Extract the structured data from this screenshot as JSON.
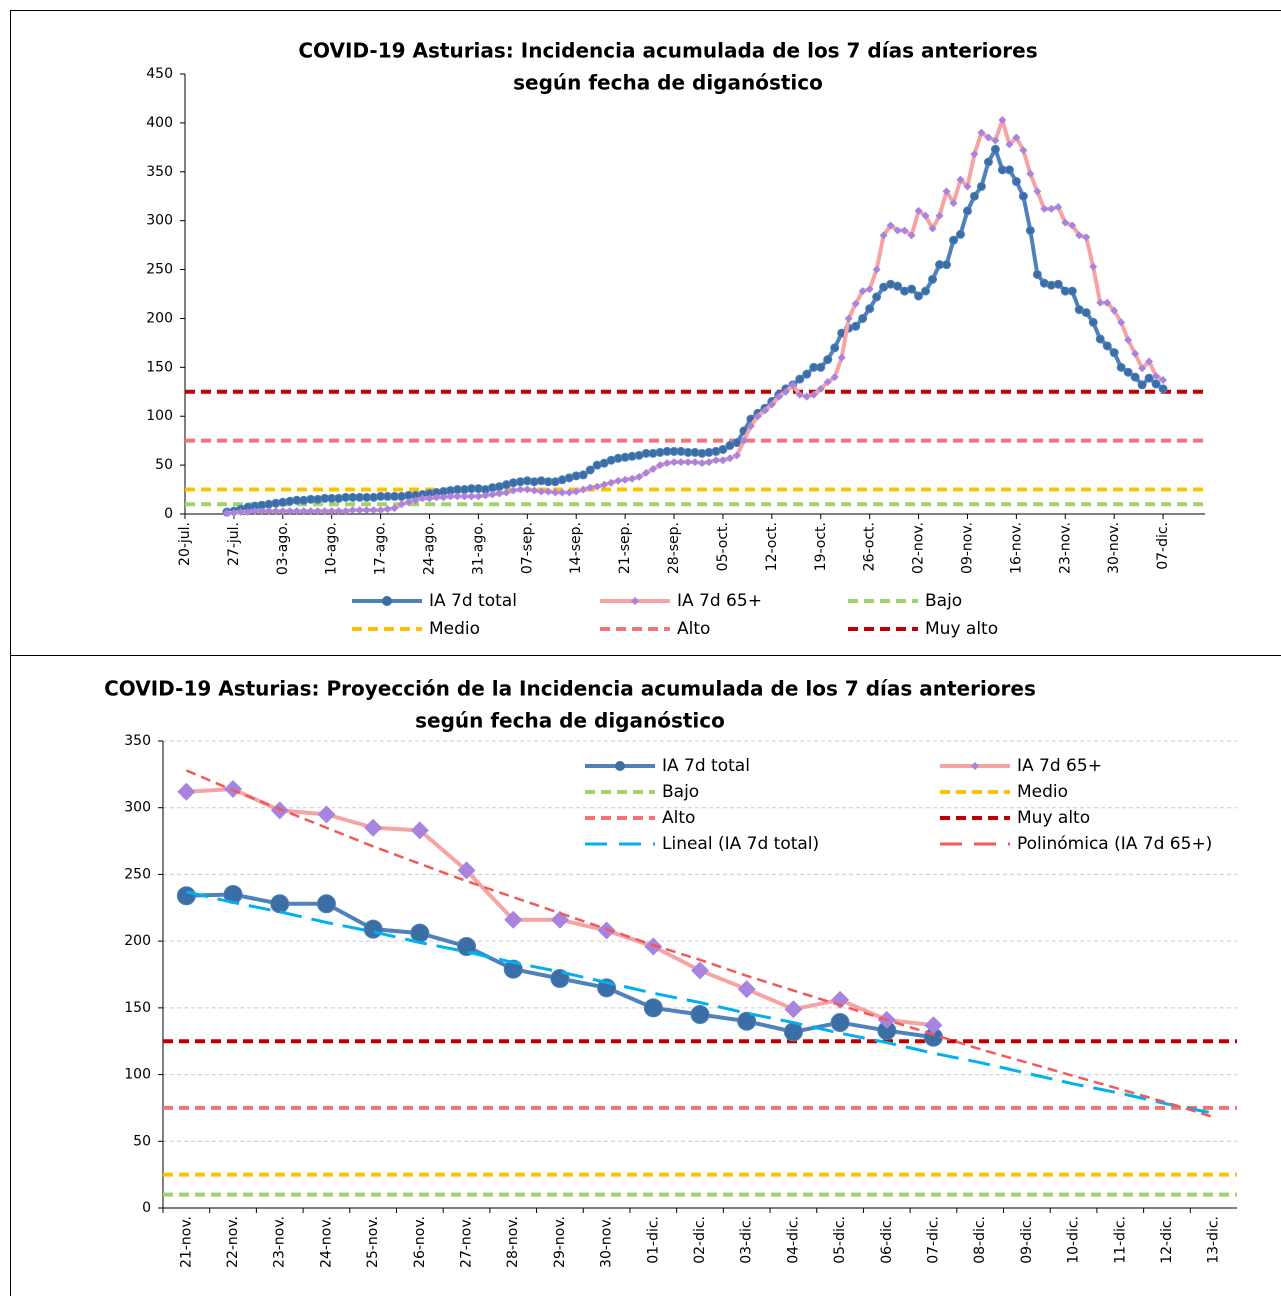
{
  "chart_data": [
    {
      "type": "line",
      "title": [
        "COVID-19 Asturias: Incidencia acumulada de los 7 días anteriores",
        "según fecha de diganóstico"
      ],
      "categories": [
        "20-jul.",
        null,
        null,
        null,
        null,
        null,
        null,
        "27-jul.",
        null,
        null,
        null,
        null,
        null,
        null,
        "03-ago.",
        null,
        null,
        null,
        null,
        null,
        null,
        "10-ago.",
        null,
        null,
        null,
        null,
        null,
        null,
        "17-ago.",
        null,
        null,
        null,
        null,
        null,
        null,
        "24-ago.",
        null,
        null,
        null,
        null,
        null,
        null,
        "31-ago.",
        null,
        null,
        null,
        null,
        null,
        null,
        "07-sep.",
        null,
        null,
        null,
        null,
        null,
        null,
        "14-sep.",
        null,
        null,
        null,
        null,
        null,
        null,
        "21-sep.",
        null,
        null,
        null,
        null,
        null,
        null,
        "28-sep.",
        null,
        null,
        null,
        null,
        null,
        null,
        "05-oct.",
        null,
        null,
        null,
        null,
        null,
        null,
        "12-oct.",
        null,
        null,
        null,
        null,
        null,
        null,
        "19-oct.",
        null,
        null,
        null,
        null,
        null,
        null,
        "26-oct.",
        null,
        null,
        null,
        null,
        null,
        null,
        "02-nov.",
        null,
        null,
        null,
        null,
        null,
        null,
        "09-nov.",
        null,
        null,
        null,
        null,
        null,
        null,
        "16-nov.",
        null,
        null,
        null,
        null,
        null,
        null,
        "23-nov.",
        null,
        null,
        null,
        null,
        null,
        null,
        "30-nov.",
        null,
        null,
        null,
        null,
        null,
        null,
        "07-dic.",
        null,
        null,
        null,
        null,
        null,
        null
      ],
      "series": [
        {
          "name": "IA 7d total",
          "color": "#4f81bd",
          "marker": "circle",
          "marker_color": "#3a6ea5",
          "values": [
            null,
            null,
            null,
            null,
            null,
            null,
            2,
            3,
            5,
            7,
            8,
            9,
            10,
            11,
            12,
            13,
            14,
            14,
            15,
            15,
            16,
            16,
            16,
            17,
            17,
            17,
            17,
            17,
            18,
            18,
            18,
            18,
            19,
            19,
            20,
            21,
            22,
            23,
            24,
            25,
            25,
            26,
            26,
            25,
            27,
            28,
            30,
            32,
            33,
            34,
            33,
            34,
            33,
            33,
            35,
            37,
            39,
            40,
            45,
            50,
            52,
            55,
            57,
            58,
            59,
            60,
            62,
            62,
            63,
            64,
            64,
            64,
            63,
            63,
            62,
            63,
            64,
            66,
            70,
            73,
            85,
            97,
            103,
            108,
            115,
            122,
            128,
            132,
            138,
            143,
            150,
            150,
            158,
            170,
            185,
            190,
            192,
            200,
            210,
            222,
            232,
            235,
            233,
            228,
            230,
            223,
            228,
            240,
            255,
            255,
            280,
            286,
            310,
            325,
            335,
            360,
            373,
            352,
            352,
            340,
            325,
            290,
            245,
            236,
            234,
            235,
            228,
            228,
            209,
            206,
            196,
            179,
            172,
            165,
            150,
            145,
            140,
            132,
            139,
            133,
            128,
            null,
            null,
            null,
            null,
            null,
            null
          ]
        },
        {
          "name": "IA 7d 65+",
          "color": "#f7a3a3",
          "marker": "diamond",
          "marker_color": "#a884e0",
          "values": [
            null,
            null,
            null,
            null,
            null,
            null,
            1,
            1,
            2,
            2,
            3,
            3,
            3,
            3,
            3,
            3,
            3,
            3,
            3,
            3,
            3,
            3,
            3,
            3,
            4,
            4,
            4,
            4,
            4,
            5,
            6,
            10,
            12,
            14,
            16,
            16,
            17,
            17,
            18,
            18,
            18,
            18,
            18,
            19,
            20,
            21,
            22,
            24,
            25,
            25,
            24,
            23,
            23,
            22,
            22,
            22,
            23,
            25,
            27,
            28,
            30,
            32,
            34,
            35,
            36,
            38,
            42,
            46,
            50,
            52,
            53,
            53,
            53,
            53,
            52,
            53,
            55,
            55,
            57,
            60,
            75,
            90,
            100,
            106,
            112,
            120,
            125,
            132,
            122,
            120,
            122,
            128,
            135,
            140,
            160,
            200,
            215,
            228,
            230,
            250,
            285,
            295,
            290,
            290,
            285,
            310,
            305,
            292,
            305,
            330,
            318,
            342,
            335,
            368,
            390,
            385,
            382,
            403,
            378,
            385,
            372,
            348,
            330,
            312,
            312,
            314,
            298,
            295,
            285,
            283,
            253,
            216,
            216,
            208,
            196,
            178,
            164,
            149,
            156,
            141,
            137,
            null,
            null,
            null,
            null,
            null,
            null
          ]
        }
      ],
      "thresholds": [
        {
          "name": "Bajo",
          "color": "#9fd46c",
          "value": 10
        },
        {
          "name": "Medio",
          "color": "#ffc000",
          "value": 25
        },
        {
          "name": "Alto",
          "color": "#f27474",
          "value": 75
        },
        {
          "name": "Muy alto",
          "color": "#c00000",
          "value": 125
        }
      ],
      "ylim": [
        0,
        450
      ],
      "yticks": [
        0,
        50,
        100,
        150,
        200,
        250,
        300,
        350,
        400,
        450
      ],
      "grid": false
    },
    {
      "type": "line",
      "title": [
        "COVID-19 Asturias: Proyección de la Incidencia acumulada de los 7 días anteriores",
        "según fecha de diganóstico"
      ],
      "categories": [
        "21-nov.",
        "22-nov.",
        "23-nov.",
        "24-nov.",
        "25-nov.",
        "26-nov.",
        "27-nov.",
        "28-nov.",
        "29-nov.",
        "30-nov.",
        "01-dic.",
        "02-dic.",
        "03-dic.",
        "04-dic.",
        "05-dic.",
        "06-dic.",
        "07-dic.",
        "08-dic.",
        "09-dic.",
        "10-dic.",
        "11-dic.",
        "12-dic.",
        "13-dic."
      ],
      "series": [
        {
          "name": "IA 7d total",
          "color": "#4f81bd",
          "marker": "circle",
          "marker_color": "#3a6ea5",
          "values": [
            234,
            235,
            228,
            228,
            209,
            206,
            196,
            179,
            172,
            165,
            150,
            145,
            140,
            132,
            139,
            133,
            128,
            null,
            null,
            null,
            null,
            null,
            null
          ]
        },
        {
          "name": "IA 7d 65+",
          "color": "#f7a3a3",
          "marker": "diamond",
          "marker_color": "#a884e0",
          "values": [
            312,
            314,
            298,
            295,
            285,
            283,
            253,
            216,
            216,
            208,
            196,
            178,
            164,
            149,
            156,
            141,
            137,
            null,
            null,
            null,
            null,
            null,
            null
          ]
        }
      ],
      "thresholds": [
        {
          "name": "Bajo",
          "color": "#9fd46c",
          "value": 10
        },
        {
          "name": "Medio",
          "color": "#ffc000",
          "value": 25
        },
        {
          "name": "Alto",
          "color": "#f27474",
          "value": 75
        },
        {
          "name": "Muy alto",
          "color": "#c00000",
          "value": 125
        }
      ],
      "trendlines": [
        {
          "name": "Lineal (IA 7d total)",
          "color": "#00b0f0",
          "values": [
            237,
            229,
            222,
            214,
            207,
            199,
            192,
            184,
            177,
            169,
            161,
            154,
            146,
            139,
            131,
            124,
            116,
            109,
            101,
            93,
            86,
            78,
            71
          ]
        },
        {
          "name": "Polinómica (IA 7d 65+)",
          "color": "#f05a5a",
          "values": [
            328,
            313,
            299,
            285,
            271,
            258,
            245,
            233,
            221,
            209,
            197,
            186,
            174,
            163,
            152,
            141,
            130,
            119,
            109,
            99,
            89,
            79,
            68
          ]
        }
      ],
      "ylim": [
        0,
        350
      ],
      "yticks": [
        0,
        50,
        100,
        150,
        200,
        250,
        300,
        350
      ],
      "grid": true
    }
  ]
}
